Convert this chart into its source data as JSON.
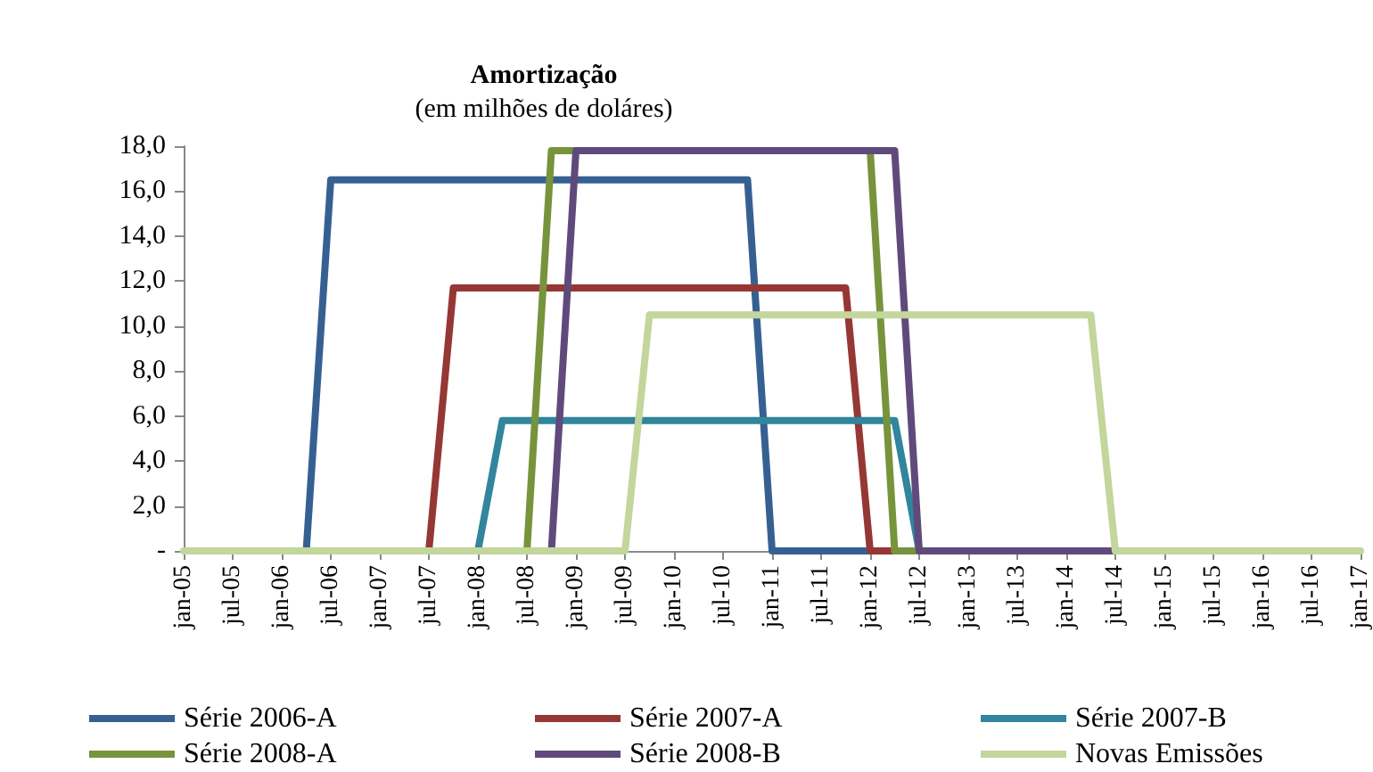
{
  "chart_data": {
    "type": "line",
    "title": "Amortização",
    "subtitle": "(em milhões de doláres)",
    "categories": [
      "jan-05",
      null,
      "jul-05",
      null,
      "jan-06",
      null,
      "jul-06",
      null,
      "jan-07",
      null,
      "jul-07",
      null,
      "jan-08",
      null,
      "jul-08",
      null,
      "jan-09",
      null,
      "jul-09",
      null,
      "jan-10",
      null,
      "jul-10",
      null,
      "jan-11",
      null,
      "jul-11",
      null,
      "jan-12",
      null,
      "jul-12",
      null,
      "jan-13",
      null,
      "jul-13",
      null,
      "jan-14",
      null,
      "jul-14",
      null,
      "jan-15",
      null,
      "jul-15",
      null,
      "jan-16",
      null,
      "jul-16",
      null,
      "jan-17"
    ],
    "series": [
      {
        "name": "Série 2006-A",
        "color": "#376092",
        "values": [
          null,
          null,
          null,
          null,
          null,
          0,
          16.5,
          16.5,
          16.5,
          16.5,
          16.5,
          16.5,
          16.5,
          16.5,
          16.5,
          16.5,
          16.5,
          16.5,
          16.5,
          16.5,
          16.5,
          16.5,
          16.5,
          16.5,
          0,
          0,
          0,
          0,
          0,
          null,
          null,
          null,
          null,
          null,
          null,
          null,
          null,
          null,
          null,
          null,
          null,
          null,
          null,
          null,
          null,
          null,
          null,
          null,
          null
        ]
      },
      {
        "name": "Série 2007-A",
        "color": "#953735",
        "values": [
          null,
          null,
          null,
          null,
          null,
          null,
          null,
          null,
          null,
          null,
          0,
          11.7,
          11.7,
          11.7,
          11.7,
          11.7,
          11.7,
          11.7,
          11.7,
          11.7,
          11.7,
          11.7,
          11.7,
          11.7,
          11.7,
          11.7,
          11.7,
          11.7,
          0,
          0,
          null,
          null,
          null,
          null,
          null,
          null,
          null,
          null,
          null,
          null,
          null,
          null,
          null,
          null,
          null,
          null,
          null,
          null,
          null
        ]
      },
      {
        "name": "Série 2007-B",
        "color": "#31859c",
        "values": [
          null,
          null,
          null,
          null,
          null,
          null,
          null,
          null,
          null,
          null,
          null,
          null,
          0,
          5.8,
          5.8,
          5.8,
          5.8,
          5.8,
          5.8,
          5.8,
          5.8,
          5.8,
          5.8,
          5.8,
          5.8,
          5.8,
          5.8,
          5.8,
          5.8,
          5.8,
          0,
          null,
          null,
          null,
          null,
          null,
          null,
          null,
          null,
          null,
          null,
          null,
          null,
          null,
          null,
          null,
          null,
          null,
          null
        ]
      },
      {
        "name": "Série 2008-A",
        "color": "#77933c",
        "values": [
          null,
          null,
          null,
          null,
          null,
          null,
          null,
          null,
          null,
          null,
          null,
          null,
          null,
          null,
          0,
          17.8,
          17.8,
          null,
          null,
          null,
          null,
          null,
          null,
          null,
          null,
          null,
          null,
          null,
          17.8,
          0,
          0,
          null,
          null,
          null,
          null,
          null,
          null,
          null,
          null,
          null,
          null,
          null,
          null,
          null,
          null,
          null,
          null,
          null,
          null
        ]
      },
      {
        "name": "Série 2008-B",
        "color": "#604a7b",
        "values": [
          null,
          null,
          null,
          null,
          null,
          null,
          null,
          null,
          null,
          null,
          null,
          null,
          null,
          null,
          null,
          0,
          17.8,
          17.8,
          17.8,
          17.8,
          17.8,
          17.8,
          17.8,
          17.8,
          17.8,
          17.8,
          17.8,
          17.8,
          17.8,
          17.8,
          0,
          0,
          0,
          0,
          0,
          0,
          0,
          0,
          0,
          null,
          null,
          null,
          null,
          null,
          null,
          null,
          null,
          null,
          null
        ]
      },
      {
        "name": "Novas Emissões",
        "color": "#c3d69b",
        "values": [
          0,
          0,
          0,
          0,
          0,
          0,
          0,
          0,
          0,
          0,
          0,
          0,
          0,
          0,
          0,
          0,
          0,
          0,
          0,
          10.5,
          10.5,
          10.5,
          10.5,
          10.5,
          10.5,
          10.5,
          10.5,
          10.5,
          10.5,
          10.5,
          10.5,
          10.5,
          10.5,
          10.5,
          10.5,
          10.5,
          10.5,
          10.5,
          0,
          0,
          0,
          0,
          0,
          0,
          0,
          0,
          0,
          0,
          0
        ]
      }
    ],
    "ylim": [
      0,
      18
    ],
    "yticks": [
      {
        "value": 0,
        "label": "-"
      },
      {
        "value": 2,
        "label": "2,0"
      },
      {
        "value": 4,
        "label": "4,0"
      },
      {
        "value": 6,
        "label": "6,0"
      },
      {
        "value": 8,
        "label": "8,0"
      },
      {
        "value": 10,
        "label": "10,0"
      },
      {
        "value": 12,
        "label": "12,0"
      },
      {
        "value": 14,
        "label": "14,0"
      },
      {
        "value": 16,
        "label": "16,0"
      },
      {
        "value": 18,
        "label": "18,0"
      }
    ],
    "grid": false,
    "legend": "bottom",
    "marker": "none",
    "line_style": "solid"
  }
}
